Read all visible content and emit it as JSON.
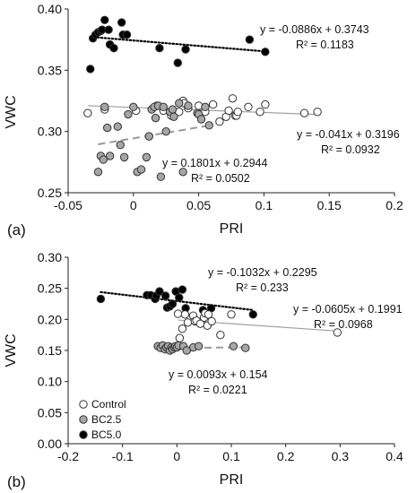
{
  "colors": {
    "Control": "#ffffff",
    "BC2.5": "#a6a6a6",
    "BC5.0": "#000000",
    "marker_edge": "#333333",
    "axis": "#222222"
  },
  "chart_data": [
    {
      "type": "scatter",
      "panel_label": "(a)",
      "xlabel": "PRI",
      "ylabel": "VWC",
      "xlim": [
        -0.05,
        0.2
      ],
      "ylim": [
        0.25,
        0.4
      ],
      "xticks": [
        "-0.05",
        "0",
        "0.05",
        "0.1",
        "0.15",
        "0.2"
      ],
      "yticks": [
        "0.25",
        "0.30",
        "0.35",
        "0.40"
      ],
      "xtick_values": [
        -0.05,
        0,
        0.05,
        0.1,
        0.15,
        0.2
      ],
      "ytick_values": [
        0.25,
        0.3,
        0.35,
        0.4
      ],
      "legend": "none",
      "grid": false,
      "series": [
        {
          "key": "BC5.0",
          "marker": "black",
          "x": [
            -0.033,
            -0.031,
            -0.029,
            -0.027,
            -0.025,
            -0.024,
            -0.022,
            -0.019,
            -0.018,
            -0.015,
            -0.009,
            -0.008,
            -0.005,
            0.02,
            0.034,
            0.04,
            0.089,
            0.101
          ],
          "y": [
            0.351,
            0.376,
            0.379,
            0.381,
            0.382,
            0.383,
            0.391,
            0.383,
            0.371,
            0.368,
            0.389,
            0.379,
            0.379,
            0.368,
            0.356,
            0.367,
            0.375,
            0.365
          ],
          "trend": {
            "type": "dotted",
            "x": [
              -0.033,
              0.101
            ],
            "equation": "y = -0.0886x + 0.3743",
            "r2": "R² = 0.1183"
          }
        },
        {
          "key": "Control",
          "marker": "white",
          "x": [
            -0.035,
            -0.022,
            0.002,
            0.018,
            0.023,
            0.029,
            0.035,
            0.038,
            0.039,
            0.042,
            0.05,
            0.055,
            0.061,
            0.066,
            0.071,
            0.073,
            0.076,
            0.078,
            0.079,
            0.08,
            0.088,
            0.097,
            0.101,
            0.131,
            0.141
          ],
          "y": [
            0.315,
            0.318,
            0.317,
            0.321,
            0.317,
            0.313,
            0.316,
            0.325,
            0.323,
            0.319,
            0.321,
            0.316,
            0.322,
            0.308,
            0.312,
            0.317,
            0.327,
            0.313,
            0.313,
            0.316,
            0.32,
            0.316,
            0.322,
            0.315,
            0.316
          ],
          "trend": {
            "type": "solid",
            "x": [
              -0.035,
              0.141
            ],
            "equation": "y = -0.041x + 0.3196",
            "r2": "R² = 0.0932"
          }
        },
        {
          "key": "BC2.5",
          "marker": "gray",
          "x": [
            -0.027,
            -0.025,
            -0.023,
            -0.022,
            -0.02,
            -0.018,
            -0.012,
            -0.01,
            -0.007,
            -0.004,
            0.0,
            0.003,
            0.006,
            0.01,
            0.012,
            0.014,
            0.016,
            0.017,
            0.019,
            0.021,
            0.023,
            0.025,
            0.028,
            0.03,
            0.031,
            0.035,
            0.038,
            0.042,
            0.049,
            0.05,
            0.052,
            0.055,
            0.058
          ],
          "y": [
            0.267,
            0.28,
            0.277,
            0.32,
            0.303,
            0.28,
            0.304,
            0.289,
            0.279,
            0.314,
            0.32,
            0.267,
            0.269,
            0.279,
            0.296,
            0.318,
            0.32,
            0.311,
            0.321,
            0.263,
            0.32,
            0.3,
            0.316,
            0.318,
            0.312,
            0.323,
            0.267,
            0.321,
            0.315,
            0.314,
            0.31,
            0.32,
            0.305
          ],
          "trend": {
            "type": "dashed",
            "x": [
              -0.027,
              0.058
            ],
            "equation": "y = 0.1801x + 0.2944",
            "r2": "R² = 0.0502"
          }
        }
      ]
    },
    {
      "type": "scatter",
      "panel_label": "(b)",
      "xlabel": "PRI",
      "ylabel": "VWC",
      "xlim": [
        -0.2,
        0.4
      ],
      "ylim": [
        0.0,
        0.3
      ],
      "xticks": [
        "-0.2",
        "-0.1",
        "0",
        "0.1",
        "0.2",
        "0.3",
        "0.4"
      ],
      "yticks": [
        "0.00",
        "0.05",
        "0.10",
        "0.15",
        "0.20",
        "0.25",
        "0.30"
      ],
      "xtick_values": [
        -0.2,
        -0.1,
        0,
        0.1,
        0.2,
        0.3,
        0.4
      ],
      "ytick_values": [
        0.0,
        0.05,
        0.1,
        0.15,
        0.2,
        0.25,
        0.3
      ],
      "legend": "bottom-left",
      "grid": false,
      "legend_entries": [
        "Control",
        "BC2.5",
        "BC5.0"
      ],
      "series": [
        {
          "key": "BC5.0",
          "marker": "black",
          "x": [
            -0.14,
            -0.055,
            -0.048,
            -0.04,
            -0.038,
            -0.032,
            -0.021,
            -0.018,
            -0.013,
            -0.008,
            -0.002,
            0.004,
            0.01,
            0.016,
            0.048,
            0.063,
            0.14
          ],
          "y": [
            0.233,
            0.239,
            0.239,
            0.233,
            0.238,
            0.245,
            0.238,
            0.219,
            0.221,
            0.225,
            0.245,
            0.235,
            0.248,
            0.218,
            0.215,
            0.218,
            0.208
          ],
          "trend": {
            "type": "dotted",
            "x": [
              -0.14,
              0.14
            ],
            "equation": "y = -0.1032x + 0.2295",
            "r2": "R² = 0.233"
          }
        },
        {
          "key": "Control",
          "marker": "white",
          "x": [
            0.002,
            0.005,
            0.01,
            0.015,
            0.02,
            0.03,
            0.033,
            0.036,
            0.043,
            0.05,
            0.052,
            0.056,
            0.058,
            0.064,
            0.08,
            0.1,
            0.295
          ],
          "y": [
            0.209,
            0.17,
            0.185,
            0.208,
            0.195,
            0.206,
            0.197,
            0.198,
            0.193,
            0.203,
            0.21,
            0.19,
            0.208,
            0.197,
            0.175,
            0.208,
            0.179
          ],
          "trend": {
            "type": "solid",
            "x": [
              0.002,
              0.295
            ],
            "equation": "y = -0.0605x + 0.1991",
            "r2": "R² = 0.0968"
          }
        },
        {
          "key": "BC2.5",
          "marker": "gray",
          "x": [
            -0.035,
            -0.03,
            -0.026,
            -0.022,
            -0.019,
            -0.016,
            -0.013,
            -0.01,
            -0.008,
            -0.005,
            -0.003,
            0.0,
            0.003,
            0.012,
            0.018,
            0.03,
            0.04,
            0.104,
            0.126
          ],
          "y": [
            0.157,
            0.154,
            0.158,
            0.152,
            0.155,
            0.157,
            0.15,
            0.155,
            0.152,
            0.155,
            0.157,
            0.155,
            0.158,
            0.157,
            0.15,
            0.155,
            0.157,
            0.157,
            0.154
          ],
          "trend": {
            "type": "dashed",
            "x": [
              -0.035,
              0.126
            ],
            "equation": "y = 0.0093x + 0.154",
            "r2": "R² = 0.0221"
          }
        }
      ]
    }
  ]
}
